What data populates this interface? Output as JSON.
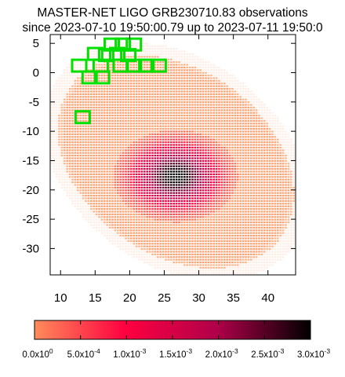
{
  "chart_data": {
    "type": "heatmap",
    "title": "MASTER-NET LIGO GRB230710.83 observations",
    "subtitle": "since 2023-07-10 19:50:00.79 up to 2023-07-11 19:50:0",
    "xlim": [
      8.5,
      44
    ],
    "ylim": [
      -34.5,
      6.5
    ],
    "x_ticks": [
      "10",
      "15",
      "20",
      "25",
      "30",
      "35",
      "40"
    ],
    "y_ticks": [
      "5",
      "0",
      "-5",
      "-10",
      "-15",
      "-20",
      "-25",
      "-30"
    ],
    "colorbar": {
      "range": [
        0,
        0.003
      ],
      "colors": [
        "#ff8c5a",
        "#ff0040",
        "#b0004a",
        "#000000"
      ],
      "tick_labels": [
        {
          "mantissa": "0.0x10",
          "exp": "0"
        },
        {
          "mantissa": "5.0x10",
          "exp": "-4"
        },
        {
          "mantissa": "1.0x10",
          "exp": "-3"
        },
        {
          "mantissa": "1.5x10",
          "exp": "-3"
        },
        {
          "mantissa": "2.0x10",
          "exp": "-3"
        },
        {
          "mantissa": "2.5x10",
          "exp": "-3"
        },
        {
          "mantissa": "3.0x10",
          "exp": "-3"
        }
      ]
    },
    "probability_region": {
      "peak_x": 26.5,
      "peak_y": -17.5,
      "description_levels": "low probability broad region from about x 10 to 41 and y -31 to 4"
    },
    "observed_fields": [
      {
        "x": 12.7,
        "y": 1.2
      },
      {
        "x": 14.2,
        "y": -0.8
      },
      {
        "x": 15.0,
        "y": 3.2
      },
      {
        "x": 15.8,
        "y": 1.2
      },
      {
        "x": 16.0,
        "y": -0.8
      },
      {
        "x": 16.6,
        "y": 3.0
      },
      {
        "x": 17.4,
        "y": 4.8
      },
      {
        "x": 18.2,
        "y": 3.2
      },
      {
        "x": 19.0,
        "y": 4.8
      },
      {
        "x": 19.8,
        "y": 3.0
      },
      {
        "x": 20.6,
        "y": 4.8
      },
      {
        "x": 18.7,
        "y": 1.2
      },
      {
        "x": 20.6,
        "y": 1.2
      },
      {
        "x": 22.4,
        "y": 1.2
      },
      {
        "x": 24.2,
        "y": 1.2
      },
      {
        "x": 13.2,
        "y": -7.6
      }
    ],
    "field_color": "#00e000",
    "grid": false
  }
}
